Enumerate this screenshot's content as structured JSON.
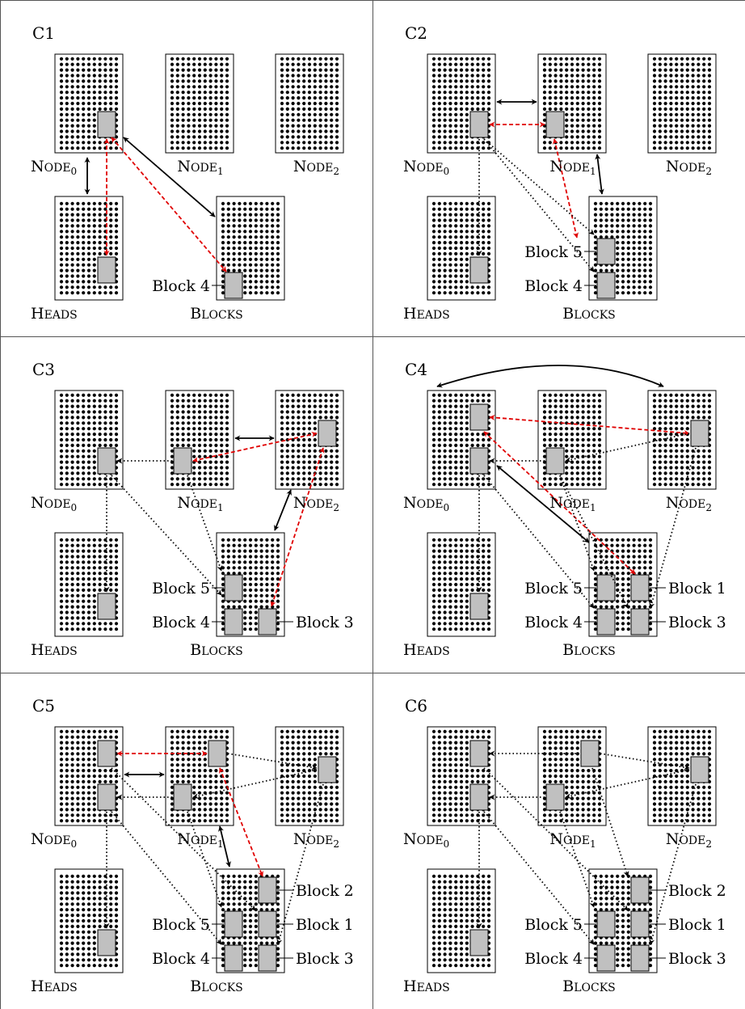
{
  "panels": [
    {
      "label": "C1",
      "nodes": [
        "Node",
        "Node",
        "Node"
      ],
      "node_subs": [
        "0",
        "1",
        "2"
      ],
      "heads_label": "Heads",
      "blocks_label": "Blocks",
      "block_labels": [
        {
          "text": "Block 4",
          "slot": "b4"
        }
      ]
    },
    {
      "label": "C2",
      "nodes": [
        "Node",
        "Node",
        "Node"
      ],
      "node_subs": [
        "0",
        "1",
        "2"
      ],
      "heads_label": "Heads",
      "blocks_label": "Blocks",
      "block_labels": [
        {
          "text": "Block 5",
          "slot": "b5"
        },
        {
          "text": "Block 4",
          "slot": "b4"
        }
      ]
    },
    {
      "label": "C3",
      "nodes": [
        "Node",
        "Node",
        "Node"
      ],
      "node_subs": [
        "0",
        "1",
        "2"
      ],
      "heads_label": "Heads",
      "blocks_label": "Blocks",
      "block_labels": [
        {
          "text": "Block 5",
          "slot": "b5"
        },
        {
          "text": "Block 4",
          "slot": "b4"
        },
        {
          "text": "Block 3",
          "slot": "b3"
        }
      ]
    },
    {
      "label": "C4",
      "nodes": [
        "Node",
        "Node",
        "Node"
      ],
      "node_subs": [
        "0",
        "1",
        "2"
      ],
      "heads_label": "Heads",
      "blocks_label": "Blocks",
      "block_labels": [
        {
          "text": "Block 5",
          "slot": "b5"
        },
        {
          "text": "Block 4",
          "slot": "b4"
        },
        {
          "text": "Block 1",
          "slot": "b1"
        },
        {
          "text": "Block 3",
          "slot": "b3"
        }
      ]
    },
    {
      "label": "C5",
      "nodes": [
        "Node",
        "Node",
        "Node"
      ],
      "node_subs": [
        "0",
        "1",
        "2"
      ],
      "heads_label": "Heads",
      "blocks_label": "Blocks",
      "block_labels": [
        {
          "text": "Block 2",
          "slot": "b2"
        },
        {
          "text": "Block 5",
          "slot": "b5"
        },
        {
          "text": "Block 1",
          "slot": "b1"
        },
        {
          "text": "Block 4",
          "slot": "b4"
        },
        {
          "text": "Block 3",
          "slot": "b3"
        }
      ]
    },
    {
      "label": "C6",
      "nodes": [
        "Node",
        "Node",
        "Node"
      ],
      "node_subs": [
        "0",
        "1",
        "2"
      ],
      "heads_label": "Heads",
      "blocks_label": "Blocks",
      "block_labels": [
        {
          "text": "Block 2",
          "slot": "b2"
        },
        {
          "text": "Block 5",
          "slot": "b5"
        },
        {
          "text": "Block 1",
          "slot": "b1"
        },
        {
          "text": "Block 4",
          "slot": "b4"
        },
        {
          "text": "Block 3",
          "slot": "b3"
        }
      ]
    }
  ],
  "colors": {
    "grid_border": "#000000",
    "dot": "#000000",
    "highlight_fill": "#c0c0c0",
    "red_arrow": "#e00000",
    "black_arrow": "#000000",
    "dotted_arrow": "#000000"
  }
}
